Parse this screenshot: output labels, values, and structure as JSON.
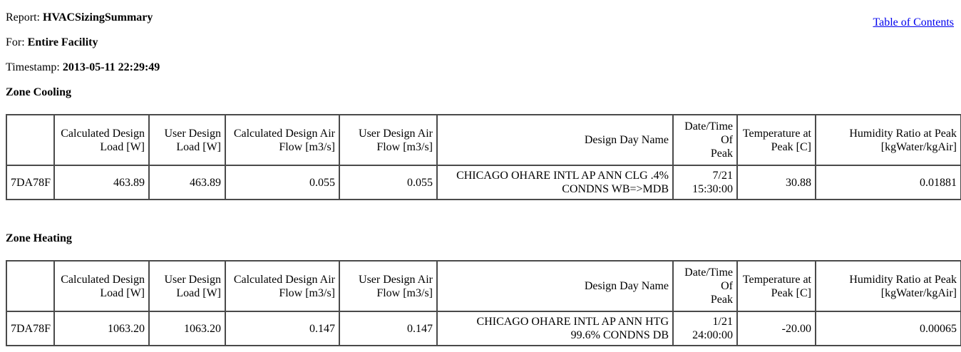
{
  "header": {
    "toc_link": "Table of Contents",
    "report_label": "Report: ",
    "report_value": "HVACSizingSummary",
    "for_label": "For: ",
    "for_value": "Entire Facility",
    "timestamp_label": "Timestamp: ",
    "timestamp_value": "2013-05-11 22:29:49"
  },
  "colors": {
    "link_blue": "#0000EE",
    "table_border": "#4a4a4a",
    "text": "#000000",
    "background": "#ffffff"
  },
  "sections": [
    {
      "title": "Zone Cooling",
      "table": {
        "columns": [
          "",
          "Calculated Design\nLoad [W]",
          "User Design\nLoad [W]",
          "Calculated Design Air\nFlow [m3/s]",
          "User Design Air\nFlow [m3/s]",
          "Design Day Name",
          "Date/Time Of\nPeak",
          "Temperature at\nPeak [C]",
          "Humidity Ratio at Peak\n[kgWater/kgAir]"
        ],
        "rows": [
          [
            "7DA78F",
            "463.89",
            "463.89",
            "0.055",
            "0.055",
            "CHICAGO OHARE INTL AP ANN CLG .4%\nCONDNS WB=>MDB",
            "7/21\n15:30:00",
            "30.88",
            "0.01881"
          ]
        ]
      }
    },
    {
      "title": "Zone Heating",
      "table": {
        "columns": [
          "",
          "Calculated Design\nLoad [W]",
          "User Design\nLoad [W]",
          "Calculated Design Air\nFlow [m3/s]",
          "User Design Air\nFlow [m3/s]",
          "Design Day Name",
          "Date/Time Of\nPeak",
          "Temperature at\nPeak [C]",
          "Humidity Ratio at Peak\n[kgWater/kgAir]"
        ],
        "rows": [
          [
            "7DA78F",
            "1063.20",
            "1063.20",
            "0.147",
            "0.147",
            "CHICAGO OHARE INTL AP ANN HTG\n99.6% CONDNS DB",
            "1/21\n24:00:00",
            "-20.00",
            "0.00065"
          ]
        ]
      }
    }
  ]
}
